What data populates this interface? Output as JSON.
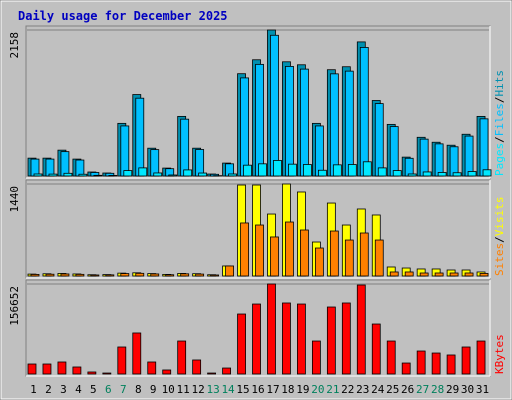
{
  "chart_data": [
    {
      "type": "bar",
      "title": "Daily usage for December 2025",
      "title_color": "#0000c0",
      "legend_separator": "/",
      "series": [
        {
          "name": "Hits",
          "color": "#0090b0",
          "values": [
            264,
            264,
            382,
            250,
            59,
            44,
            778,
            1204,
            411,
            117,
            881,
            411,
            29,
            191,
            1512,
            1718,
            2158,
            1688,
            1644,
            778,
            1571,
            1615,
            1982,
            1116,
            763,
            279,
            572,
            499,
            455,
            617,
            881
          ]
        },
        {
          "name": "Files",
          "color": "#00c0ff",
          "values": [
            250,
            250,
            360,
            236,
            52,
            40,
            740,
            1150,
            390,
            108,
            840,
            392,
            25,
            180,
            1450,
            1650,
            2080,
            1620,
            1580,
            740,
            1510,
            1550,
            1900,
            1070,
            730,
            262,
            545,
            475,
            432,
            590,
            845
          ]
        },
        {
          "name": "Pages",
          "color": "#00e8ff",
          "values": [
            30,
            28,
            40,
            26,
            10,
            8,
            80,
            120,
            45,
            15,
            90,
            44,
            5,
            30,
            160,
            180,
            230,
            175,
            170,
            85,
            165,
            170,
            210,
            120,
            80,
            30,
            60,
            52,
            48,
            66,
            92
          ]
        }
      ],
      "ylim": [
        0,
        2158
      ],
      "yticks": [
        2158
      ]
    },
    {
      "type": "bar",
      "legend_separator": "/",
      "series": [
        {
          "name": "Visits",
          "color": "#ffff00",
          "values": [
            30,
            35,
            40,
            32,
            20,
            22,
            45,
            50,
            38,
            25,
            40,
            36,
            20,
            157,
            1424,
            1424,
            970,
            1440,
            1315,
            532,
            1142,
            798,
            1049,
            955,
            141,
            125,
            110,
            110,
            94,
            94,
            63
          ]
        },
        {
          "name": "Sites",
          "color": "#ff8000",
          "values": [
            25,
            28,
            32,
            26,
            16,
            18,
            38,
            42,
            32,
            20,
            34,
            30,
            16,
            157,
            830,
            798,
            611,
            845,
            720,
            438,
            704,
            563,
            673,
            563,
            63,
            63,
            47,
            47,
            47,
            47,
            40
          ]
        }
      ],
      "ylim": [
        0,
        1440
      ],
      "yticks": [
        1440
      ]
    },
    {
      "type": "bar",
      "series": [
        {
          "name": "KBytes",
          "color": "#ff0000",
          "values": [
            17400,
            17400,
            20900,
            12200,
            3500,
            1700,
            47000,
            71400,
            20900,
            7000,
            57400,
            24400,
            1700,
            10400,
            104400,
            121800,
            156652,
            123600,
            121800,
            57400,
            116600,
            123600,
            154900,
            87000,
            57400,
            19100,
            40000,
            36500,
            33100,
            47000,
            57400
          ]
        }
      ],
      "ylim": [
        0,
        156652
      ],
      "yticks": [
        156652
      ],
      "categories": [
        "1",
        "2",
        "3",
        "4",
        "5",
        "6",
        "7",
        "8",
        "9",
        "10",
        "11",
        "12",
        "13",
        "14",
        "15",
        "16",
        "17",
        "18",
        "19",
        "20",
        "21",
        "22",
        "23",
        "24",
        "25",
        "26",
        "27",
        "28",
        "29",
        "30",
        "31"
      ],
      "category_colors": [
        "#000000",
        "#000000",
        "#000000",
        "#000000",
        "#000000",
        "#00805c",
        "#00805c",
        "#000000",
        "#000000",
        "#000000",
        "#000000",
        "#000000",
        "#00805c",
        "#00805c",
        "#000000",
        "#000000",
        "#000000",
        "#000000",
        "#000000",
        "#00805c",
        "#00805c",
        "#000000",
        "#000000",
        "#000000",
        "#000000",
        "#000000",
        "#00805c",
        "#00805c",
        "#000000",
        "#000000",
        "#000000"
      ]
    }
  ]
}
